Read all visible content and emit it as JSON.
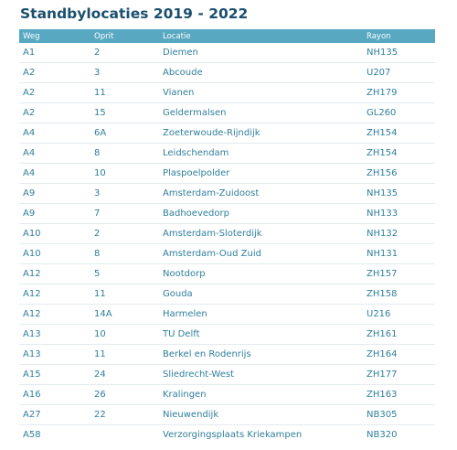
{
  "page": {
    "title": "Standbylocaties 2019 - 2022"
  },
  "table": {
    "headers": {
      "weg": "Weg",
      "oprit": "Oprit",
      "locatie": "Locatie",
      "rayon": "Rayon"
    },
    "rows": [
      {
        "weg": "A1",
        "oprit": "2",
        "locatie": "Diemen",
        "rayon": "NH135"
      },
      {
        "weg": "A2",
        "oprit": "3",
        "locatie": "Abcoude",
        "rayon": "U207"
      },
      {
        "weg": "A2",
        "oprit": "11",
        "locatie": "Vianen",
        "rayon": "ZH179"
      },
      {
        "weg": "A2",
        "oprit": "15",
        "locatie": "Geldermalsen",
        "rayon": "GL260"
      },
      {
        "weg": "A4",
        "oprit": "6A",
        "locatie": "Zoeterwoude-Rijndijk",
        "rayon": "ZH154"
      },
      {
        "weg": "A4",
        "oprit": "8",
        "locatie": "Leidschendam",
        "rayon": "ZH154"
      },
      {
        "weg": "A4",
        "oprit": "10",
        "locatie": "Plaspoelpolder",
        "rayon": "ZH156"
      },
      {
        "weg": "A9",
        "oprit": "3",
        "locatie": "Amsterdam-Zuidoost",
        "rayon": "NH135"
      },
      {
        "weg": "A9",
        "oprit": "7",
        "locatie": "Badhoevedorp",
        "rayon": "NH133"
      },
      {
        "weg": "A10",
        "oprit": "2",
        "locatie": "Amsterdam-Sloterdijk",
        "rayon": "NH132"
      },
      {
        "weg": "A10",
        "oprit": "8",
        "locatie": "Amsterdam-Oud Zuid",
        "rayon": "NH131"
      },
      {
        "weg": "A12",
        "oprit": "5",
        "locatie": "Nootdorp",
        "rayon": "ZH157"
      },
      {
        "weg": "A12",
        "oprit": "11",
        "locatie": "Gouda",
        "rayon": "ZH158"
      },
      {
        "weg": "A12",
        "oprit": "14A",
        "locatie": "Harmelen",
        "rayon": "U216"
      },
      {
        "weg": "A13",
        "oprit": "10",
        "locatie": "TU Delft",
        "rayon": "ZH161"
      },
      {
        "weg": "A13",
        "oprit": "11",
        "locatie": "Berkel en Rodenrijs",
        "rayon": "ZH164"
      },
      {
        "weg": "A15",
        "oprit": "24",
        "locatie": "Sliedrecht-West",
        "rayon": "ZH177"
      },
      {
        "weg": "A16",
        "oprit": "26",
        "locatie": "Kralingen",
        "rayon": "ZH163"
      },
      {
        "weg": "A27",
        "oprit": "22",
        "locatie": "Nieuwendijk",
        "rayon": "NB305"
      },
      {
        "weg": "A58",
        "oprit": "",
        "locatie": "Verzorgingsplaats Kriekampen",
        "rayon": "NB320"
      }
    ]
  },
  "colors": {
    "title": "#1b4f6f",
    "header_background": "#58a8c2",
    "header_text": "#ffffff",
    "cell_text": "#2f7f9c",
    "row_divider": "#e3eaee"
  }
}
